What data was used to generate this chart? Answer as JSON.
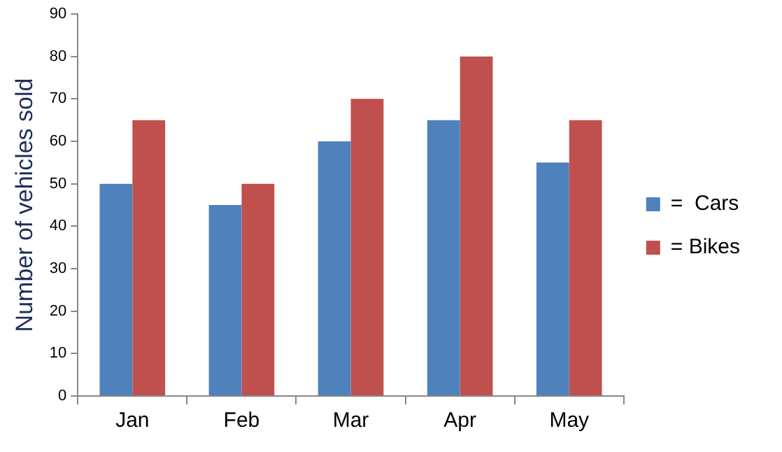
{
  "chart_data": {
    "type": "bar",
    "ylabel": "Number of vehicles sold",
    "categories": [
      "Jan",
      "Feb",
      "Mar",
      "Apr",
      "May"
    ],
    "series": [
      {
        "name": "=  Cars",
        "color": "#4f81bd",
        "values": [
          50,
          45,
          60,
          65,
          55
        ]
      },
      {
        "name": "= Bikes",
        "color": "#c0504d",
        "values": [
          65,
          50,
          70,
          80,
          65
        ]
      }
    ],
    "ylim": [
      0,
      90
    ],
    "yticks": [
      0,
      10,
      20,
      30,
      40,
      50,
      60,
      70,
      80,
      90
    ],
    "grid": false,
    "legend": "right"
  }
}
